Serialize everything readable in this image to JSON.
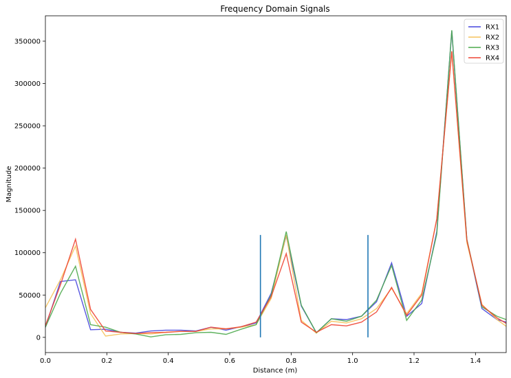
{
  "chart_data": {
    "type": "line",
    "title": "Frequency Domain Signals",
    "xlabel": "Distance (m)",
    "ylabel": "Magnitude",
    "xlim": [
      0.0,
      1.5
    ],
    "ylim": [
      -18000,
      380000
    ],
    "xticks": [
      0.0,
      0.2,
      0.4,
      0.6,
      0.8,
      1.0,
      1.2,
      1.4
    ],
    "xtick_labels": [
      "0.0",
      "0.2",
      "0.4",
      "0.6",
      "0.8",
      "1.0",
      "1.2",
      "1.4"
    ],
    "yticks": [
      0,
      50000,
      100000,
      150000,
      200000,
      250000,
      300000,
      350000
    ],
    "ytick_labels": [
      "0",
      "50000",
      "100000",
      "150000",
      "200000",
      "250000",
      "300000",
      "350000"
    ],
    "grid": false,
    "legend_position": "top-right",
    "x": [
      0.0,
      0.049,
      0.098,
      0.147,
      0.196,
      0.245,
      0.294,
      0.343,
      0.392,
      0.441,
      0.49,
      0.539,
      0.588,
      0.637,
      0.686,
      0.735,
      0.784,
      0.833,
      0.882,
      0.931,
      0.98,
      1.029,
      1.078,
      1.127,
      1.176,
      1.225,
      1.274,
      1.323,
      1.372,
      1.421,
      1.47,
      1.5
    ],
    "series": [
      {
        "name": "RX1",
        "color": "#4444dd",
        "values": [
          12000,
          66000,
          68000,
          9000,
          9500,
          6000,
          5000,
          7500,
          8500,
          8500,
          7500,
          12000,
          8500,
          12500,
          17000,
          52000,
          120000,
          37000,
          5500,
          22000,
          21000,
          25000,
          42000,
          88000,
          25000,
          40000,
          125000,
          362000,
          115000,
          34000,
          21000,
          18000
        ]
      },
      {
        "name": "RX2",
        "color": "#f5c25a",
        "values": [
          35000,
          68000,
          108000,
          28000,
          1500,
          4000,
          4500,
          4000,
          6000,
          7000,
          7000,
          10000,
          10000,
          12000,
          15000,
          46000,
          121000,
          20000,
          5000,
          19000,
          17000,
          22000,
          34000,
          58000,
          28000,
          52000,
          140000,
          338000,
          112000,
          39000,
          21000,
          13000
        ]
      },
      {
        "name": "RX3",
        "color": "#4caa4c",
        "values": [
          12000,
          52000,
          84000,
          15000,
          12000,
          6000,
          4000,
          500,
          3000,
          3500,
          5500,
          6000,
          3500,
          9500,
          15000,
          50000,
          125000,
          38000,
          5500,
          22000,
          19000,
          25000,
          44000,
          85000,
          20000,
          44000,
          122000,
          363000,
          116000,
          36000,
          25000,
          21000
        ]
      },
      {
        "name": "RX4",
        "color": "#ee4433",
        "values": [
          14000,
          62000,
          116000,
          33000,
          7500,
          6000,
          4500,
          5500,
          6000,
          7000,
          7000,
          12000,
          10000,
          12500,
          18000,
          48000,
          99000,
          18000,
          6000,
          15000,
          13500,
          18000,
          30000,
          59000,
          26000,
          50000,
          140000,
          338000,
          115000,
          38000,
          23000,
          16500
        ]
      }
    ],
    "vlines": [
      {
        "x": 0.7,
        "ymin": 0,
        "ymax": 121000,
        "color": "#1f77b4"
      },
      {
        "x": 1.05,
        "ymin": 0,
        "ymax": 121000,
        "color": "#1f77b4"
      }
    ]
  }
}
